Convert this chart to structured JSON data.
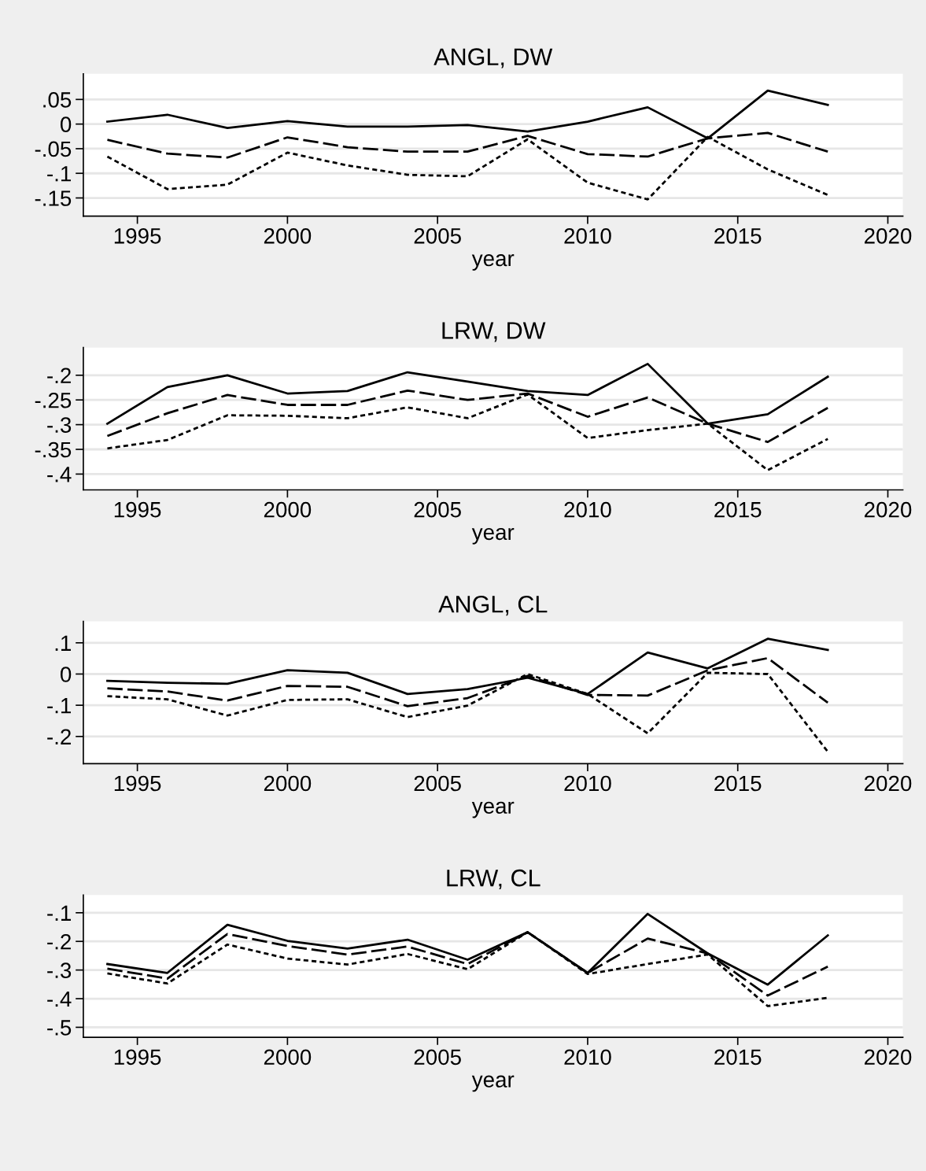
{
  "chart_data": [
    {
      "type": "line",
      "title": "ANGL, DW",
      "xlabel": "year",
      "x": [
        1994,
        1996,
        1998,
        2000,
        2002,
        2004,
        2006,
        2008,
        2010,
        2012,
        2014,
        2016,
        2018
      ],
      "xlim": [
        1993.2,
        2020.5
      ],
      "xticks": [
        1995,
        2000,
        2005,
        2010,
        2015,
        2020
      ],
      "ylim": [
        -0.187,
        0.102
      ],
      "yticks": [
        {
          "value": -0.15,
          "label": "-.15"
        },
        {
          "value": -0.1,
          "label": "-.1"
        },
        {
          "value": -0.05,
          "label": "-.05"
        },
        {
          "value": 0,
          "label": "0"
        },
        {
          "value": 0.05,
          "label": ".05"
        }
      ],
      "grid": "y",
      "legend": false,
      "marker": "none",
      "series": [
        {
          "color": "#000000",
          "line_style": "solid",
          "values": [
            0.005,
            0.019,
            -0.008,
            0.006,
            -0.005,
            -0.005,
            -0.002,
            -0.015,
            0.005,
            0.034,
            -0.029,
            0.068,
            0.039
          ]
        },
        {
          "color": "#000000",
          "line_style": "dashed",
          "values": [
            -0.032,
            -0.06,
            -0.068,
            -0.027,
            -0.047,
            -0.056,
            -0.056,
            -0.024,
            -0.061,
            -0.066,
            -0.029,
            -0.018,
            -0.056
          ]
        },
        {
          "color": "#000000",
          "line_style": "dotted",
          "values": [
            -0.066,
            -0.132,
            -0.123,
            -0.058,
            -0.084,
            -0.103,
            -0.106,
            -0.031,
            -0.119,
            -0.153,
            -0.026,
            -0.092,
            -0.144
          ]
        }
      ]
    },
    {
      "type": "line",
      "title": "LRW, DW",
      "xlabel": "year",
      "x": [
        1994,
        1996,
        1998,
        2000,
        2002,
        2004,
        2006,
        2008,
        2010,
        2012,
        2014,
        2016,
        2018
      ],
      "xlim": [
        1993.2,
        2020.5
      ],
      "xticks": [
        1995,
        2000,
        2005,
        2010,
        2015,
        2020
      ],
      "ylim": [
        -0.432,
        -0.144
      ],
      "yticks": [
        {
          "value": -0.4,
          "label": "-.4"
        },
        {
          "value": -0.35,
          "label": "-.35"
        },
        {
          "value": -0.3,
          "label": "-.3"
        },
        {
          "value": -0.25,
          "label": "-.25"
        },
        {
          "value": -0.2,
          "label": "-.2"
        }
      ],
      "grid": "y",
      "legend": false,
      "marker": "none",
      "series": [
        {
          "color": "#000000",
          "line_style": "solid",
          "values": [
            -0.298,
            -0.224,
            -0.2,
            -0.237,
            -0.232,
            -0.194,
            -0.213,
            -0.232,
            -0.24,
            -0.177,
            -0.298,
            -0.279,
            -0.203
          ]
        },
        {
          "color": "#000000",
          "line_style": "dashed",
          "values": [
            -0.323,
            -0.277,
            -0.24,
            -0.26,
            -0.26,
            -0.231,
            -0.25,
            -0.237,
            -0.284,
            -0.245,
            -0.298,
            -0.335,
            -0.266
          ]
        },
        {
          "color": "#000000",
          "line_style": "dotted",
          "values": [
            -0.348,
            -0.331,
            -0.281,
            -0.282,
            -0.287,
            -0.265,
            -0.287,
            -0.239,
            -0.327,
            -0.311,
            -0.298,
            -0.392,
            -0.329
          ]
        }
      ]
    },
    {
      "type": "line",
      "title": "ANGL, CL",
      "xlabel": "year",
      "x": [
        1994,
        1996,
        1998,
        2000,
        2002,
        2004,
        2006,
        2008,
        2010,
        2012,
        2014,
        2016,
        2018
      ],
      "xlim": [
        1993.2,
        2020.5
      ],
      "xticks": [
        1995,
        2000,
        2005,
        2010,
        2015,
        2020
      ],
      "ylim": [
        -0.287,
        0.169
      ],
      "yticks": [
        {
          "value": -0.2,
          "label": "-.2"
        },
        {
          "value": -0.1,
          "label": "-.1"
        },
        {
          "value": 0,
          "label": "0"
        },
        {
          "value": 0.1,
          "label": ".1"
        }
      ],
      "grid": "y",
      "legend": false,
      "marker": "none",
      "series": [
        {
          "color": "#000000",
          "line_style": "solid",
          "values": [
            -0.022,
            -0.028,
            -0.031,
            0.012,
            0.004,
            -0.064,
            -0.048,
            -0.012,
            -0.064,
            0.069,
            0.018,
            0.113,
            0.077
          ]
        },
        {
          "color": "#000000",
          "line_style": "dashed",
          "values": [
            -0.046,
            -0.056,
            -0.085,
            -0.038,
            -0.041,
            -0.103,
            -0.077,
            -0.006,
            -0.067,
            -0.069,
            0.012,
            0.051,
            -0.092
          ]
        },
        {
          "color": "#000000",
          "line_style": "dotted",
          "values": [
            -0.071,
            -0.081,
            -0.133,
            -0.083,
            -0.081,
            -0.138,
            -0.101,
            0.0,
            -0.064,
            -0.19,
            0.004,
            0.0,
            -0.249
          ]
        }
      ]
    },
    {
      "type": "line",
      "title": "LRW, CL",
      "xlabel": "year",
      "x": [
        1994,
        1996,
        1998,
        2000,
        2002,
        2004,
        2006,
        2008,
        2010,
        2012,
        2014,
        2016,
        2018
      ],
      "xlim": [
        1993.2,
        2020.5
      ],
      "xticks": [
        1995,
        2000,
        2005,
        2010,
        2015,
        2020
      ],
      "ylim": [
        -0.535,
        -0.038
      ],
      "yticks": [
        {
          "value": -0.5,
          "label": "-.5"
        },
        {
          "value": -0.4,
          "label": "-.4"
        },
        {
          "value": -0.3,
          "label": "-.3"
        },
        {
          "value": -0.2,
          "label": "-.2"
        },
        {
          "value": -0.1,
          "label": "-.1"
        }
      ],
      "grid": "y",
      "legend": false,
      "marker": "none",
      "series": [
        {
          "color": "#000000",
          "line_style": "solid",
          "values": [
            -0.279,
            -0.31,
            -0.142,
            -0.198,
            -0.225,
            -0.194,
            -0.264,
            -0.168,
            -0.31,
            -0.104,
            -0.242,
            -0.351,
            -0.179
          ]
        },
        {
          "color": "#000000",
          "line_style": "dashed",
          "values": [
            -0.295,
            -0.33,
            -0.174,
            -0.216,
            -0.246,
            -0.218,
            -0.279,
            -0.168,
            -0.31,
            -0.19,
            -0.242,
            -0.389,
            -0.288
          ]
        },
        {
          "color": "#000000",
          "line_style": "dotted",
          "values": [
            -0.312,
            -0.347,
            -0.211,
            -0.26,
            -0.281,
            -0.244,
            -0.297,
            -0.168,
            -0.314,
            -0.279,
            -0.246,
            -0.426,
            -0.397
          ]
        }
      ]
    }
  ]
}
